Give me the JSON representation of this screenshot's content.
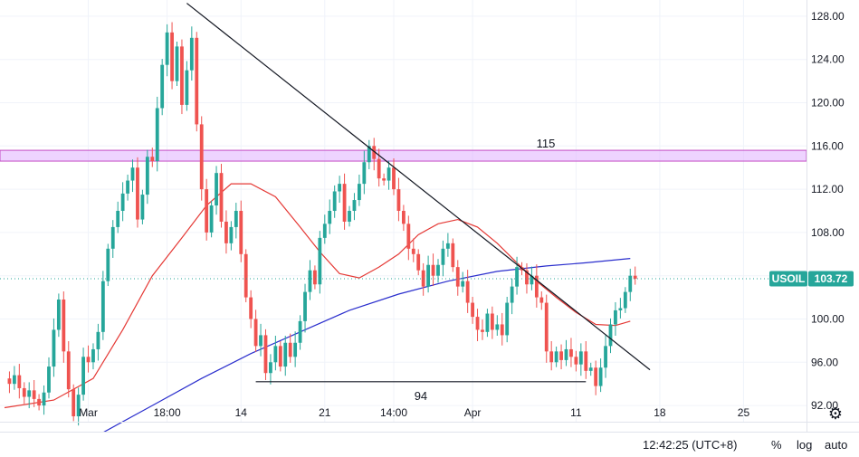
{
  "chart_data": {
    "type": "candlestick",
    "symbol": "USOIL",
    "last_price": "103.72",
    "y_ticks": [
      "128.00",
      "124.00",
      "120.00",
      "116.00",
      "112.00",
      "108.00",
      "104.00",
      "100.00",
      "96.00",
      "92.00"
    ],
    "ylim": [
      90.5,
      129.5
    ],
    "x_ticks": [
      {
        "label": "Mar",
        "i": 17
      },
      {
        "label": "18:00",
        "i": 33
      },
      {
        "label": "14",
        "i": 48
      },
      {
        "label": "21",
        "i": 65
      },
      {
        "label": "14:00",
        "i": 79
      },
      {
        "label": "Apr",
        "i": 95
      },
      {
        "label": "11",
        "i": 116
      },
      {
        "label": "18",
        "i": 133
      },
      {
        "label": "25",
        "i": 150
      }
    ],
    "x_range": [
      0,
      158
    ],
    "resistance_zone": {
      "label": "115",
      "low": 114.6,
      "high": 115.6,
      "color": "#e0b0ff",
      "border": "#c44bc4"
    },
    "support_line": {
      "label": "94",
      "value": 94.2,
      "from_i": 51,
      "to_i": 118
    },
    "trend_line": {
      "from": {
        "i": 37,
        "value": 129.2
      },
      "to": {
        "i": 131,
        "value": 95.3
      }
    },
    "colors": {
      "up": "#26a69a",
      "down": "#ef5350",
      "ma_fast": "#e53935",
      "ma_slow": "#2a2ecd",
      "trend": "#131722",
      "price_badge": "#26a69a"
    },
    "closes": [
      94.5,
      94.0,
      94.8,
      93.6,
      92.8,
      93.4,
      92.6,
      92.0,
      93.2,
      95.6,
      99.0,
      101.8,
      97.0,
      93.5,
      91.0,
      93.0,
      96.5,
      96.0,
      97.2,
      98.8,
      103.5,
      106.5,
      108.5,
      110.0,
      111.6,
      112.8,
      114.0,
      109.2,
      111.5,
      115.0,
      114.6,
      119.5,
      123.5,
      126.5,
      122.0,
      125.2,
      119.8,
      123.0,
      126.0,
      118.0,
      112.0,
      108.0,
      110.5,
      113.5,
      109.0,
      107.0,
      108.5,
      110.0,
      106.0,
      102.0,
      100.0,
      97.5,
      98.5,
      95.0,
      96.0,
      97.5,
      95.6,
      97.8,
      96.5,
      97.8,
      99.8,
      102.5,
      104.5,
      103.2,
      107.5,
      108.8,
      110.0,
      111.8,
      112.5,
      109.0,
      110.0,
      111.0,
      112.5,
      114.5,
      116.0,
      114.8,
      113.0,
      112.8,
      114.0,
      112.0,
      110.0,
      108.8,
      106.5,
      106.0,
      104.5,
      103.0,
      105.0,
      104.0,
      105.0,
      106.5,
      107.0,
      104.8,
      103.0,
      103.5,
      101.5,
      100.2,
      99.0,
      98.8,
      100.5,
      99.0,
      99.5,
      98.5,
      101.5,
      103.0,
      104.8,
      104.5,
      103.2,
      104.0,
      102.0,
      101.5,
      97.0,
      96.0,
      97.0,
      96.2,
      97.2,
      96.5,
      95.8,
      97.0,
      95.2,
      95.5,
      93.8,
      95.5,
      97.5,
      99.5,
      100.8,
      101.0,
      102.5,
      104.0,
      103.72
    ],
    "ma_fast": [
      [
        0,
        91.8
      ],
      [
        10,
        92.5
      ],
      [
        18,
        94.5
      ],
      [
        24,
        99
      ],
      [
        30,
        104
      ],
      [
        36,
        107.5
      ],
      [
        41,
        110.5
      ],
      [
        46,
        112.5
      ],
      [
        50,
        112.5
      ],
      [
        55,
        111.3
      ],
      [
        60,
        108.5
      ],
      [
        64,
        106.2
      ],
      [
        68,
        104.2
      ],
      [
        72,
        103.8
      ],
      [
        76,
        104.8
      ],
      [
        80,
        106
      ],
      [
        84,
        107.8
      ],
      [
        88,
        108.8
      ],
      [
        92,
        109.2
      ],
      [
        96,
        108.5
      ],
      [
        100,
        107
      ],
      [
        104,
        105.2
      ],
      [
        108,
        103.5
      ],
      [
        112,
        102
      ],
      [
        116,
        100.6
      ],
      [
        120,
        99.5
      ],
      [
        124,
        99.4
      ],
      [
        127,
        99.8
      ]
    ],
    "ma_slow": [
      [
        20,
        89.5
      ],
      [
        30,
        92
      ],
      [
        40,
        94.5
      ],
      [
        50,
        96.8
      ],
      [
        60,
        98.8
      ],
      [
        70,
        100.8
      ],
      [
        80,
        102.3
      ],
      [
        90,
        103.5
      ],
      [
        100,
        104.4
      ],
      [
        110,
        104.9
      ],
      [
        118,
        105.2
      ],
      [
        127,
        105.6
      ]
    ]
  },
  "bottom_bar": {
    "time": "12:42:25 (UTC+8)",
    "percent": "%",
    "log": "log",
    "auto": "auto"
  },
  "icons": {
    "settings": "gear-icon"
  }
}
